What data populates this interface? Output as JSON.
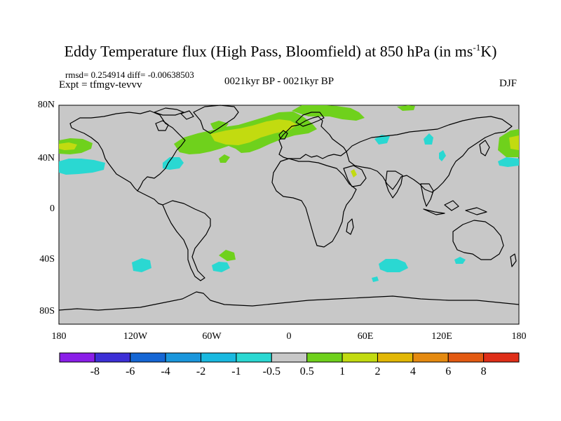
{
  "title": "Eddy Temperature flux (High Pass, Bloomfield) at 850 hPa (in ms",
  "title_sup": "-1",
  "title_end": "K)",
  "stats": "rmsd= 0.254914 diff= -0.00638503",
  "expt": "Expt = tfmgv-tevvv",
  "center_label": "0021kyr BP - 0021kyr BP",
  "season": "DJF",
  "lat_labels": [
    "80N",
    "40N",
    "0",
    "40S",
    "80S"
  ],
  "lon_labels": [
    "180",
    "120W",
    "60W",
    "0",
    "60E",
    "120E",
    "180"
  ],
  "colorbar": {
    "labels": [
      "-8",
      "-6",
      "-4",
      "-2",
      "-1",
      "-0.5",
      "0.5",
      "1",
      "2",
      "4",
      "6",
      "8"
    ],
    "colors": [
      "#8a1ee8",
      "#3c2fd6",
      "#1566d4",
      "#1a96dc",
      "#19b9e0",
      "#2ad8d2",
      "#c8c8c8",
      "#6fd11c",
      "#c2db10",
      "#e2b705",
      "#e58a10",
      "#e35a12",
      "#df2e18"
    ]
  },
  "map": {
    "ocean_color": "#c8c8c8",
    "coast_color": "#000000",
    "lat_range": [
      -90,
      90
    ],
    "lon_range": [
      -180,
      180
    ]
  }
}
